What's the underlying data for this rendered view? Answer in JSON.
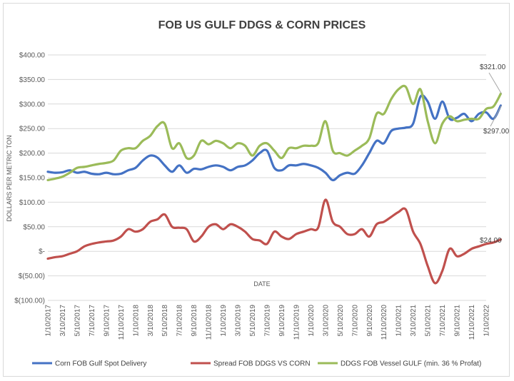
{
  "chart_data": {
    "type": "line",
    "title": "FOB US GULF DDGS & CORN PRICES",
    "xlabel": "DATE",
    "ylabel": "DOLLARS PER METRIC TON",
    "ylim": [
      -100,
      400
    ],
    "y_ticks": [
      {
        "value": 400,
        "label": "$400.00"
      },
      {
        "value": 350,
        "label": "$350.00"
      },
      {
        "value": 300,
        "label": "$300.00"
      },
      {
        "value": 250,
        "label": "$250.00"
      },
      {
        "value": 200,
        "label": "$200.00"
      },
      {
        "value": 150,
        "label": "$150.00"
      },
      {
        "value": 100,
        "label": "$100.00"
      },
      {
        "value": 50,
        "label": "$50.00"
      },
      {
        "value": 0,
        "label": "$-"
      },
      {
        "value": -50,
        "label": "$(50.00)"
      },
      {
        "value": -100,
        "label": "$(100.00)"
      }
    ],
    "x_ticks": [
      "1/10/2017",
      "3/10/2017",
      "5/10/2017",
      "7/10/2017",
      "9/10/2017",
      "11/10/2017",
      "1/10/2018",
      "3/10/2018",
      "5/10/2018",
      "7/10/2018",
      "9/10/2018",
      "11/10/2018",
      "1/10/2019",
      "3/10/2019",
      "5/10/2019",
      "7/10/2019",
      "9/10/2019",
      "11/10/2019",
      "1/10/2020",
      "3/10/2020",
      "5/10/2020",
      "7/10/2020",
      "9/10/2020",
      "11/10/2020",
      "1/10/2021",
      "3/10/2021",
      "5/10/2021",
      "7/10/2021",
      "9/10/2021",
      "11/10/2021",
      "1/10/2022"
    ],
    "x_unit": "months since 1/10/2017",
    "series": [
      {
        "name": "Corn FOB Gulf Spot Delivery",
        "color": "#4472C4",
        "points": [
          [
            0,
            162
          ],
          [
            1,
            160
          ],
          [
            2,
            161
          ],
          [
            3,
            165
          ],
          [
            4,
            160
          ],
          [
            5,
            162
          ],
          [
            6,
            158
          ],
          [
            7,
            157
          ],
          [
            8,
            160
          ],
          [
            9,
            157
          ],
          [
            10,
            158
          ],
          [
            11,
            165
          ],
          [
            12,
            170
          ],
          [
            13,
            185
          ],
          [
            14,
            195
          ],
          [
            15,
            191
          ],
          [
            16,
            175
          ],
          [
            17,
            162
          ],
          [
            18,
            175
          ],
          [
            19,
            160
          ],
          [
            20,
            168
          ],
          [
            21,
            167
          ],
          [
            22,
            172
          ],
          [
            23,
            175
          ],
          [
            24,
            172
          ],
          [
            25,
            165
          ],
          [
            26,
            172
          ],
          [
            27,
            175
          ],
          [
            28,
            185
          ],
          [
            29,
            200
          ],
          [
            30,
            205
          ],
          [
            31,
            170
          ],
          [
            32,
            165
          ],
          [
            33,
            175
          ],
          [
            34,
            175
          ],
          [
            35,
            178
          ],
          [
            36,
            175
          ],
          [
            37,
            170
          ],
          [
            38,
            160
          ],
          [
            39,
            145
          ],
          [
            40,
            155
          ],
          [
            41,
            160
          ],
          [
            42,
            158
          ],
          [
            43,
            175
          ],
          [
            44,
            200
          ],
          [
            45,
            225
          ],
          [
            46,
            220
          ],
          [
            47,
            245
          ],
          [
            48,
            250
          ],
          [
            49,
            252
          ],
          [
            50,
            260
          ],
          [
            51,
            315
          ],
          [
            52,
            305
          ],
          [
            53,
            270
          ],
          [
            54,
            305
          ],
          [
            55,
            270
          ],
          [
            56,
            272
          ],
          [
            57,
            280
          ],
          [
            58,
            265
          ],
          [
            59,
            280
          ],
          [
            60,
            283
          ],
          [
            61,
            270
          ],
          [
            62,
            297
          ]
        ],
        "end_label": "$297.00"
      },
      {
        "name": "Spread FOB DDGS VS CORN",
        "color": "#C0504D",
        "points": [
          [
            0,
            -15
          ],
          [
            1,
            -12
          ],
          [
            2,
            -10
          ],
          [
            3,
            -5
          ],
          [
            4,
            0
          ],
          [
            5,
            10
          ],
          [
            6,
            15
          ],
          [
            7,
            18
          ],
          [
            8,
            20
          ],
          [
            9,
            22
          ],
          [
            10,
            30
          ],
          [
            11,
            45
          ],
          [
            12,
            40
          ],
          [
            13,
            45
          ],
          [
            14,
            60
          ],
          [
            15,
            65
          ],
          [
            16,
            75
          ],
          [
            17,
            50
          ],
          [
            18,
            48
          ],
          [
            19,
            45
          ],
          [
            20,
            20
          ],
          [
            21,
            30
          ],
          [
            22,
            50
          ],
          [
            23,
            55
          ],
          [
            24,
            45
          ],
          [
            25,
            55
          ],
          [
            26,
            50
          ],
          [
            27,
            40
          ],
          [
            28,
            25
          ],
          [
            29,
            22
          ],
          [
            30,
            15
          ],
          [
            31,
            40
          ],
          [
            32,
            30
          ],
          [
            33,
            25
          ],
          [
            34,
            35
          ],
          [
            35,
            40
          ],
          [
            36,
            45
          ],
          [
            37,
            48
          ],
          [
            38,
            105
          ],
          [
            39,
            60
          ],
          [
            40,
            50
          ],
          [
            41,
            35
          ],
          [
            42,
            35
          ],
          [
            43,
            45
          ],
          [
            44,
            30
          ],
          [
            45,
            55
          ],
          [
            46,
            60
          ],
          [
            47,
            70
          ],
          [
            48,
            80
          ],
          [
            49,
            85
          ],
          [
            50,
            40
          ],
          [
            51,
            15
          ],
          [
            52,
            -30
          ],
          [
            53,
            -65
          ],
          [
            54,
            -40
          ],
          [
            55,
            5
          ],
          [
            56,
            -10
          ],
          [
            57,
            -5
          ],
          [
            58,
            5
          ],
          [
            59,
            10
          ],
          [
            60,
            15
          ],
          [
            61,
            18
          ],
          [
            62,
            24
          ]
        ],
        "end_label": "$24.00"
      },
      {
        "name": "DDGS FOB Vessel GULF  (min. 36 % Profat)",
        "color": "#9BBB59",
        "points": [
          [
            0,
            145
          ],
          [
            1,
            148
          ],
          [
            2,
            152
          ],
          [
            3,
            160
          ],
          [
            4,
            170
          ],
          [
            5,
            172
          ],
          [
            6,
            175
          ],
          [
            7,
            178
          ],
          [
            8,
            180
          ],
          [
            9,
            185
          ],
          [
            10,
            205
          ],
          [
            11,
            210
          ],
          [
            12,
            210
          ],
          [
            13,
            225
          ],
          [
            14,
            235
          ],
          [
            15,
            255
          ],
          [
            16,
            260
          ],
          [
            17,
            210
          ],
          [
            18,
            220
          ],
          [
            19,
            190
          ],
          [
            20,
            195
          ],
          [
            21,
            225
          ],
          [
            22,
            218
          ],
          [
            23,
            225
          ],
          [
            24,
            220
          ],
          [
            25,
            210
          ],
          [
            26,
            220
          ],
          [
            27,
            215
          ],
          [
            28,
            195
          ],
          [
            29,
            215
          ],
          [
            30,
            220
          ],
          [
            31,
            205
          ],
          [
            32,
            190
          ],
          [
            33,
            210
          ],
          [
            34,
            210
          ],
          [
            35,
            215
          ],
          [
            36,
            215
          ],
          [
            37,
            220
          ],
          [
            38,
            265
          ],
          [
            39,
            205
          ],
          [
            40,
            200
          ],
          [
            41,
            195
          ],
          [
            42,
            205
          ],
          [
            43,
            215
          ],
          [
            44,
            230
          ],
          [
            45,
            280
          ],
          [
            46,
            280
          ],
          [
            47,
            310
          ],
          [
            48,
            330
          ],
          [
            49,
            335
          ],
          [
            50,
            300
          ],
          [
            51,
            330
          ],
          [
            52,
            265
          ],
          [
            53,
            220
          ],
          [
            54,
            260
          ],
          [
            55,
            275
          ],
          [
            56,
            265
          ],
          [
            57,
            268
          ],
          [
            58,
            270
          ],
          [
            59,
            270
          ],
          [
            60,
            290
          ],
          [
            61,
            295
          ],
          [
            62,
            321
          ]
        ],
        "end_label": "$321.00"
      }
    ],
    "legend": {
      "position": "bottom",
      "entries": [
        "Corn FOB Gulf Spot Delivery",
        "Spread FOB DDGS VS CORN",
        "DDGS FOB Vessel GULF  (min. 36 % Profat)"
      ]
    },
    "grid": true
  }
}
